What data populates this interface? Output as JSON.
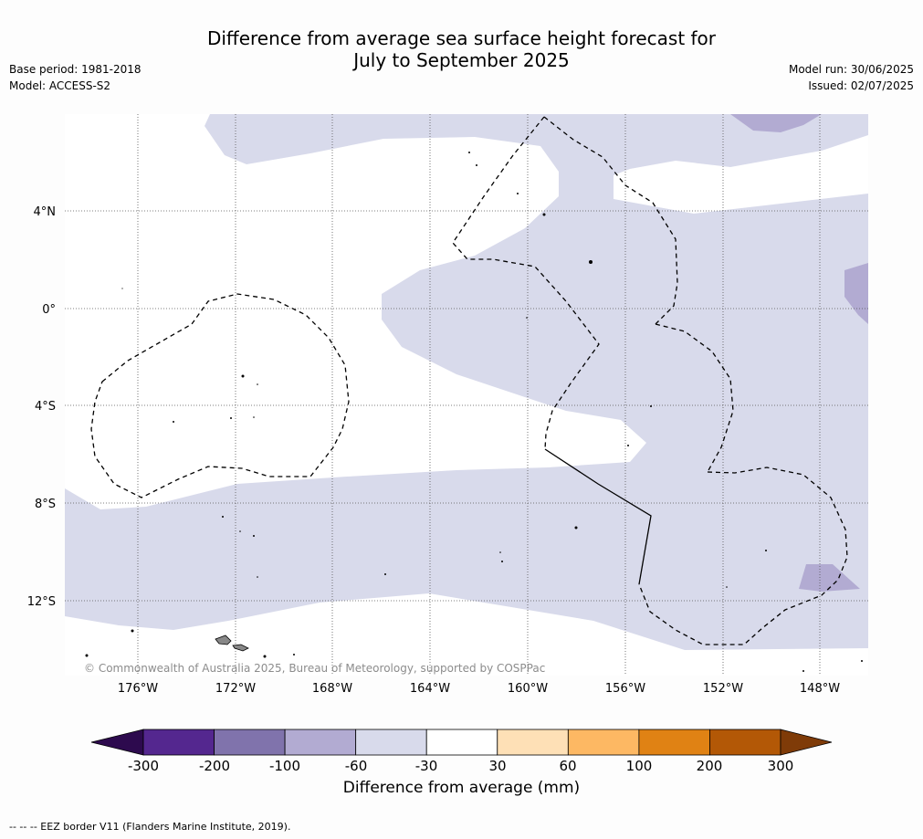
{
  "title_line1": "Difference from average sea surface height forecast for",
  "title_line2": "July to September 2025",
  "left_meta": [
    "Base period: 1981-2018",
    "Model: ACCESS-S2"
  ],
  "right_meta": [
    "Model run: 30/06/2025",
    "Issued: 02/07/2025"
  ],
  "latitude_labels": [
    "4°N",
    "0°",
    "4°S",
    "8°S",
    "12°S"
  ],
  "longitude_labels": [
    "176°W",
    "172°W",
    "168°W",
    "164°W",
    "160°W",
    "156°W",
    "152°W",
    "148°W"
  ],
  "copyright": "© Commonwealth of Australia 2025, Bureau of Meteorology, supported by COSPPac",
  "colorbar": {
    "title": "Difference from average (mm)",
    "ticks": [
      "-300",
      "-200",
      "-100",
      "-60",
      "-30",
      "30",
      "60",
      "100",
      "200",
      "300"
    ],
    "colors": [
      "#2d0a4e",
      "#54278f",
      "#8073ac",
      "#b2abd2",
      "#d8daeb",
      "#ffffff",
      "#fee0b6",
      "#fdb863",
      "#e08214",
      "#b35806",
      "#7f3b08"
    ]
  },
  "footer": "--  --  -- EEZ border V11 (Flanders Marine Institute, 2019)."
}
